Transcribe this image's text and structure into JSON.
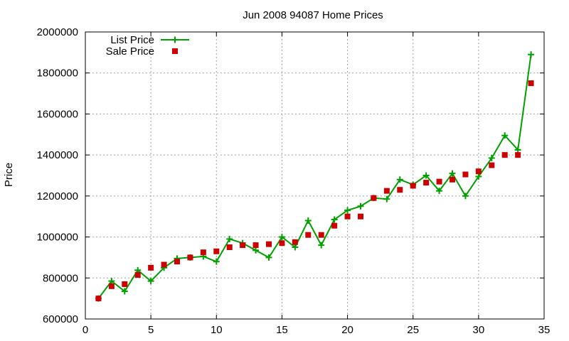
{
  "chart_data": {
    "type": "line",
    "title": "Jun 2008 94087 Home Prices",
    "xlabel": "",
    "ylabel": "Price",
    "xlim": [
      0,
      35
    ],
    "ylim": [
      600000,
      2000000
    ],
    "xticks": [
      0,
      5,
      10,
      15,
      20,
      25,
      30,
      35
    ],
    "yticks": [
      600000,
      800000,
      1000000,
      1200000,
      1400000,
      1600000,
      1800000,
      2000000
    ],
    "grid": true,
    "legend": {
      "placement": "top-left"
    },
    "series": [
      {
        "name": "List Price",
        "style": "line-plus",
        "color": "#00a000",
        "x": [
          1,
          2,
          3,
          4,
          5,
          6,
          7,
          8,
          9,
          10,
          11,
          12,
          13,
          14,
          15,
          16,
          17,
          18,
          19,
          20,
          21,
          22,
          23,
          24,
          25,
          26,
          27,
          28,
          29,
          30,
          31,
          32,
          33,
          34
        ],
        "y": [
          700000,
          785000,
          735000,
          838000,
          785000,
          850000,
          895000,
          900000,
          905000,
          880000,
          990000,
          970000,
          935000,
          900000,
          1000000,
          950000,
          1080000,
          960000,
          1085000,
          1130000,
          1150000,
          1190000,
          1185000,
          1280000,
          1255000,
          1300000,
          1225000,
          1310000,
          1200000,
          1295000,
          1385000,
          1495000,
          1425000,
          1890000
        ]
      },
      {
        "name": "Sale Price",
        "style": "points-square",
        "color": "#cc0000",
        "x": [
          1,
          2,
          3,
          4,
          5,
          6,
          7,
          8,
          9,
          10,
          11,
          12,
          13,
          14,
          15,
          16,
          17,
          18,
          19,
          20,
          21,
          22,
          23,
          24,
          25,
          26,
          27,
          28,
          29,
          30,
          31,
          32,
          33,
          34
        ],
        "y": [
          700000,
          760000,
          770000,
          815000,
          850000,
          865000,
          880000,
          900000,
          925000,
          930000,
          950000,
          960000,
          960000,
          965000,
          970000,
          975000,
          1010000,
          1010000,
          1055000,
          1100000,
          1100000,
          1190000,
          1225000,
          1230000,
          1250000,
          1265000,
          1270000,
          1280000,
          1305000,
          1320000,
          1350000,
          1400000,
          1400000,
          1750000
        ]
      }
    ]
  }
}
